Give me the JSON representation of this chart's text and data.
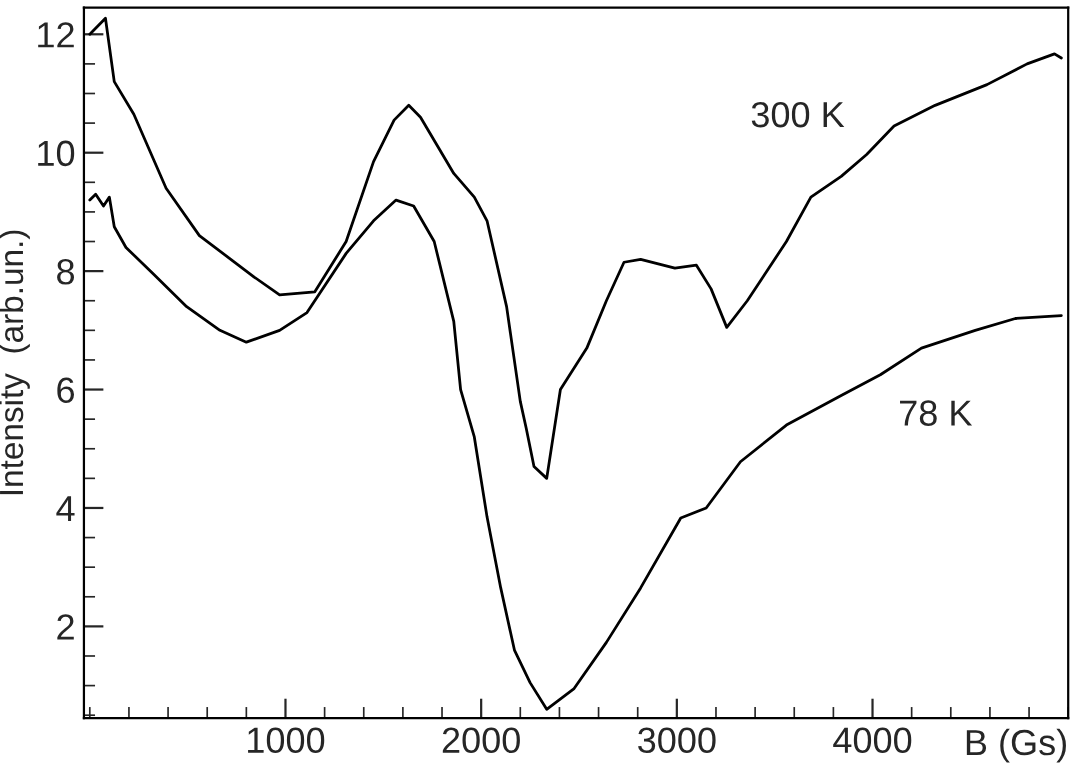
{
  "chart_data": {
    "type": "line",
    "xlabel": "B (Gs)",
    "ylabel": "Intensity  (arb.un.)",
    "xlim": [
      -30,
      5000
    ],
    "ylim": [
      0.45,
      12.45
    ],
    "xticks": [
      1000,
      2000,
      3000,
      4000
    ],
    "yticks": [
      2,
      4,
      6,
      8,
      10,
      12
    ],
    "grid": false,
    "legend": false,
    "series": [
      {
        "color": "#000000",
        "x": [
          0,
          80,
          125,
          225,
          390,
          560,
          840,
          970,
          1150,
          1310,
          1450,
          1555,
          1630,
          1690,
          1860,
          1965,
          2030,
          2130,
          2200,
          2230,
          2270,
          2335,
          2405,
          2540,
          2640,
          2730,
          2815,
          2990,
          3100,
          3175,
          3255,
          3360,
          3560,
          3685,
          3840,
          3970,
          4110,
          4320,
          4585,
          4790,
          4930,
          4965
        ],
        "values": [
          12.0,
          12.27,
          11.2,
          10.65,
          9.4,
          8.6,
          7.9,
          7.6,
          7.65,
          8.5,
          9.85,
          10.55,
          10.8,
          10.6,
          9.65,
          9.25,
          8.85,
          7.4,
          5.8,
          5.35,
          4.7,
          4.5,
          6.0,
          6.7,
          7.5,
          8.15,
          8.2,
          8.05,
          8.1,
          7.7,
          7.05,
          7.5,
          8.5,
          9.25,
          9.6,
          9.97,
          10.45,
          10.8,
          11.15,
          11.5,
          11.67,
          11.6
        ]
      },
      {
        "color": "#000000",
        "x": [
          0,
          30,
          70,
          100,
          125,
          185,
          325,
          495,
          665,
          800,
          970,
          1110,
          1310,
          1450,
          1565,
          1655,
          1760,
          1860,
          1895,
          1965,
          2030,
          2100,
          2170,
          2250,
          2335,
          2355,
          2475,
          2640,
          2815,
          3020,
          3150,
          3325,
          3560,
          3840,
          4040,
          4250,
          4525,
          4730,
          4965
        ],
        "values": [
          9.2,
          9.3,
          9.1,
          9.25,
          8.75,
          8.4,
          7.95,
          7.4,
          7.0,
          6.8,
          7.0,
          7.3,
          8.3,
          8.85,
          9.2,
          9.1,
          8.5,
          7.15,
          6.0,
          5.2,
          3.85,
          2.65,
          1.6,
          1.05,
          0.6,
          0.65,
          0.95,
          1.73,
          2.65,
          3.83,
          4.0,
          4.78,
          5.4,
          5.9,
          6.25,
          6.7,
          7.0,
          7.2,
          7.25
        ]
      }
    ],
    "annotations": [
      "300 K",
      "78 K"
    ]
  }
}
